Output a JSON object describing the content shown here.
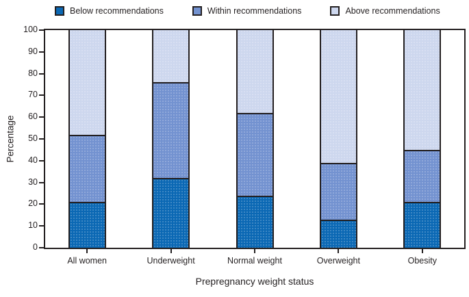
{
  "figure": {
    "background": "#ffffff",
    "frame_color": "#231f20",
    "text_color": "#231f20"
  },
  "chart_data": {
    "type": "bar",
    "stacked": true,
    "title": "",
    "xlabel": "Prepregnancy weight status",
    "ylabel": "Percentage",
    "categories": [
      "All women",
      "Underweight",
      "Normal weight",
      "Overweight",
      "Obesity"
    ],
    "series": [
      {
        "name": "Below recommendations",
        "color": "#0b68b4",
        "values": [
          21,
          32,
          24,
          13,
          21
        ]
      },
      {
        "name": "Within recommendations",
        "color": "#7392d0",
        "values": [
          31,
          44,
          38,
          26,
          24
        ]
      },
      {
        "name": "Above recommendations",
        "color": "#cdd7ee",
        "values": [
          48,
          24,
          38,
          61,
          55
        ]
      }
    ],
    "ylim": [
      0,
      100
    ],
    "yticks": [
      0,
      10,
      20,
      30,
      40,
      50,
      60,
      70,
      80,
      90,
      100
    ],
    "legend_position": "top",
    "grid": false
  }
}
